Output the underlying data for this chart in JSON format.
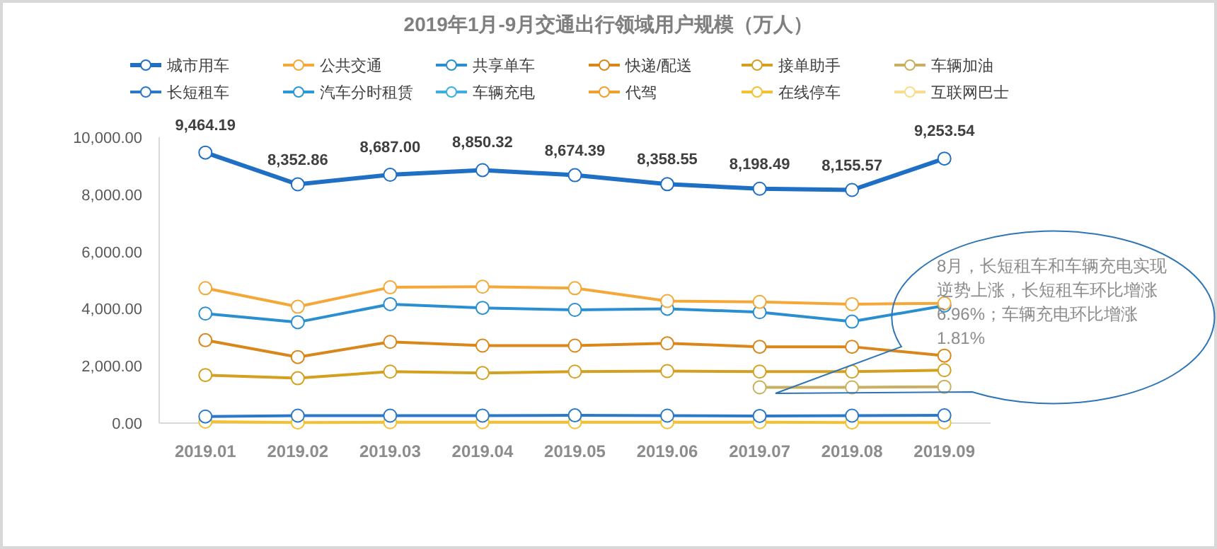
{
  "chart_data": {
    "type": "line",
    "title": "2019年1月-9月交通出行领域用户规模（万人）",
    "categories": [
      "2019.01",
      "2019.02",
      "2019.03",
      "2019.04",
      "2019.05",
      "2019.06",
      "2019.07",
      "2019.08",
      "2019.09"
    ],
    "series": [
      {
        "name": "城市用车",
        "color": "#1f6fc5",
        "values": [
          9464.19,
          8352.86,
          8687.0,
          8850.32,
          8674.39,
          8358.55,
          8198.49,
          8155.57,
          9253.54
        ],
        "value_labels": [
          "9,464.19",
          "8,352.86",
          "8,687.00",
          "8,850.32",
          "8,674.39",
          "8,358.55",
          "8,198.49",
          "8,155.57",
          "9,253.54"
        ]
      },
      {
        "name": "公共交通",
        "color": "#f5a83a",
        "values": [
          4720,
          4070,
          4750,
          4770,
          4720,
          4270,
          4240,
          4160,
          4190
        ]
      },
      {
        "name": "共享单车",
        "color": "#2a8fd0",
        "values": [
          3830,
          3530,
          4160,
          4030,
          3960,
          4000,
          3880,
          3550,
          4110
        ]
      },
      {
        "name": "快递/配送",
        "color": "#d9861a",
        "values": [
          2900,
          2310,
          2840,
          2710,
          2710,
          2790,
          2670,
          2670,
          2360
        ]
      },
      {
        "name": "接单助手",
        "color": "#d4a020",
        "values": [
          1680,
          1570,
          1800,
          1750,
          1800,
          1820,
          1800,
          1800,
          1850
        ]
      },
      {
        "name": "车辆加油",
        "color": "#c8b060",
        "values": [
          null,
          null,
          null,
          null,
          null,
          null,
          1250,
          1250,
          1270
        ]
      },
      {
        "name": "长短租车",
        "color": "#2b78c8",
        "values": [
          230,
          260,
          260,
          260,
          270,
          260,
          250,
          260,
          270
        ]
      },
      {
        "name": "汽车分时租赁",
        "color": "#2898d8",
        "values": [
          null,
          null,
          null,
          null,
          null,
          null,
          null,
          null,
          null
        ]
      },
      {
        "name": "车辆充电",
        "color": "#3ab0e0",
        "values": [
          null,
          null,
          null,
          null,
          null,
          null,
          null,
          null,
          null
        ]
      },
      {
        "name": "代驾",
        "color": "#f0a030",
        "values": [
          null,
          null,
          null,
          null,
          null,
          null,
          null,
          null,
          null
        ]
      },
      {
        "name": "在线停车",
        "color": "#f5c030",
        "values": [
          50,
          20,
          30,
          30,
          30,
          30,
          30,
          20,
          20
        ]
      },
      {
        "name": "互联网巴士",
        "color": "#f8dc90",
        "values": [
          null,
          null,
          null,
          null,
          null,
          null,
          null,
          null,
          null
        ]
      }
    ],
    "ylim": [
      0,
      10000
    ],
    "yticks": [
      {
        "value": 0,
        "label": "0.00"
      },
      {
        "value": 2000,
        "label": "2,000.00"
      },
      {
        "value": 4000,
        "label": "4,000.00"
      },
      {
        "value": 6000,
        "label": "6,000.00"
      },
      {
        "value": 8000,
        "label": "8,000.00"
      },
      {
        "value": 10000,
        "label": "10,000.00"
      }
    ],
    "legend": "top",
    "marker": "circle",
    "line_style": "solid",
    "annotations": [
      "8月，长短租车和车辆充电实现逆势上涨，长短租车环比增涨6.96%；车辆充电环比增涨1.81%"
    ]
  }
}
